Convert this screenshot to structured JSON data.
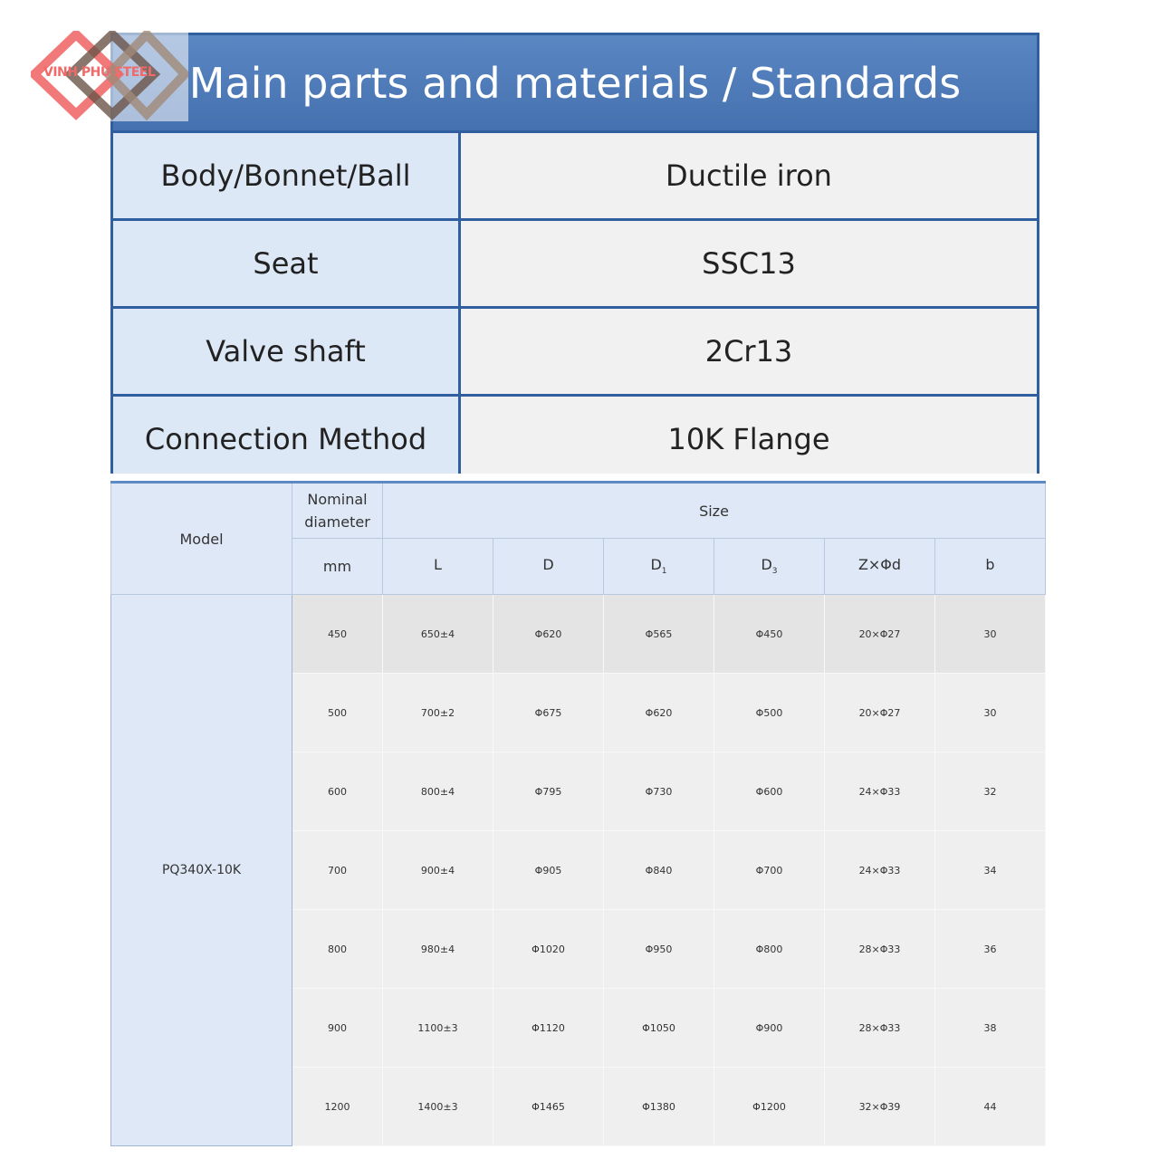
{
  "title": "Main parts and materials / Standards",
  "logo": {
    "text": "VINH PHU STEEL",
    "colors": [
      "#f06a6a",
      "#8a7060"
    ]
  },
  "materials": [
    {
      "part": "Body/Bonnet/Ball",
      "material": "Ductile iron"
    },
    {
      "part": "Seat",
      "material": "SSC13"
    },
    {
      "part": "Valve shaft",
      "material": "2Cr13"
    },
    {
      "part": "Connection Method",
      "material": "10K Flange"
    }
  ],
  "size_table": {
    "model_header": "Model",
    "nominal_header": "Nominal diameter",
    "size_header": "Size",
    "unit": "mm",
    "columns": [
      "L",
      "D",
      "D",
      "D",
      "Z×Φd",
      "b"
    ],
    "column_subscripts": [
      "",
      "",
      "1",
      "3",
      "",
      ""
    ],
    "model": "PQ340X-10K",
    "rows": [
      [
        "450",
        "650±4",
        "Φ620",
        "Φ565",
        "Φ450",
        "20×Φ27",
        "30"
      ],
      [
        "500",
        "700±2",
        "Φ675",
        "Φ620",
        "Φ500",
        "20×Φ27",
        "30"
      ],
      [
        "600",
        "800±4",
        "Φ795",
        "Φ730",
        "Φ600",
        "24×Φ33",
        "32"
      ],
      [
        "700",
        "900±4",
        "Φ905",
        "Φ840",
        "Φ700",
        "24×Φ33",
        "34"
      ],
      [
        "800",
        "980±4",
        "Φ1020",
        "Φ950",
        "Φ800",
        "28×Φ33",
        "36"
      ],
      [
        "900",
        "1100±3",
        "Φ1120",
        "Φ1050",
        "Φ900",
        "28×Φ33",
        "38"
      ],
      [
        "1200",
        "1400±3",
        "Φ1465",
        "Φ1380",
        "Φ1200",
        "32×Φ39",
        "44"
      ]
    ]
  }
}
